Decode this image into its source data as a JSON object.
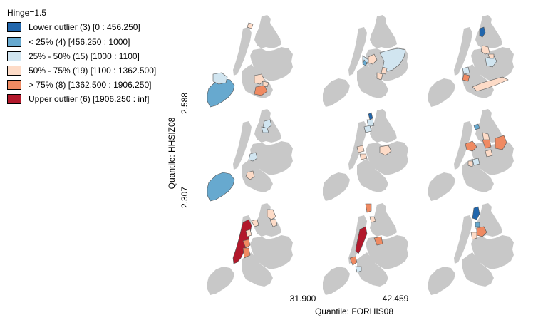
{
  "legend": {
    "title": "Hinge=1.5",
    "items": [
      {
        "label": "Lower outlier (3)  [0 : 456.250]",
        "color": "#2166ac"
      },
      {
        "label": "< 25% (4)  [456.250 : 1000]",
        "color": "#67a9cf"
      },
      {
        "label": "25% - 50% (15)  [1000 : 1100]",
        "color": "#d1e5f0"
      },
      {
        "label": "50% - 75% (19)  [1100 : 1362.500]",
        "color": "#fddbc7"
      },
      {
        "label": "> 75% (8)  [1362.500 : 1906.250]",
        "color": "#ef8a62"
      },
      {
        "label": "Upper outlier (6)  [1906.250 : inf]",
        "color": "#b2182b"
      }
    ]
  },
  "axes": {
    "x_title": "Quantile: FORHIS08",
    "x_breaks": [
      "31.900",
      "42.459"
    ],
    "y_title": "Quantile: HHSIZ08",
    "y_breaks": [
      "2.588",
      "2.307"
    ]
  },
  "base_color": "#c8c8c8",
  "grid": {
    "rows": 3,
    "cols": 3
  }
}
